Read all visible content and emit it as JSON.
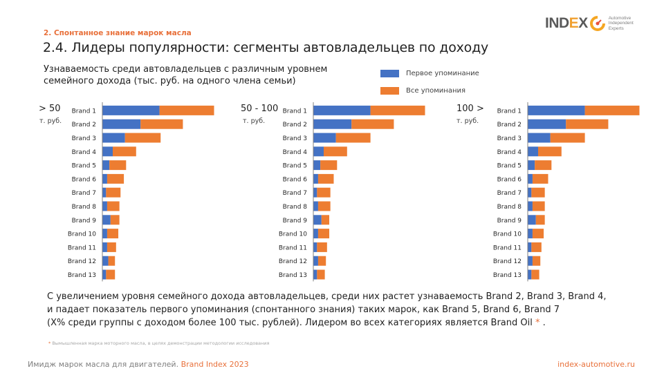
{
  "header": {
    "section": "2. Спонтанное знание марок масла",
    "title": "2.4. Лидеры популярности: сегменты автовладельцев по доходу",
    "subtitle": "Узнаваемость среди автовладельцев с различным уровнем семейного дохода (тыс. руб. на одного члена семьи)"
  },
  "logo": {
    "text_prefix": "IND",
    "text_accent": "E",
    "text_suffix": "X",
    "tagline": [
      "Automotive",
      "Independent",
      "Experts"
    ]
  },
  "legend": [
    {
      "label": "Первое упоминание",
      "color": "#4472c4"
    },
    {
      "label": "Все упоминания",
      "color": "#ed7d31"
    }
  ],
  "chart_data": [
    {
      "type": "bar",
      "orientation": "horizontal",
      "stacked": true,
      "group_label": "> 50",
      "group_sub": "т. руб.",
      "categories": [
        "Brand 1",
        "Brand 2",
        "Brand 3",
        "Brand 4",
        "Brand 5",
        "Brand 6",
        "Brand 7",
        "Brand 8",
        "Brand 9",
        "Brand 10",
        "Brand 11",
        "Brand 12",
        "Brand 13"
      ],
      "series": [
        {
          "name": "Первое упоминание",
          "color": "#4472c4",
          "values": [
            51,
            34,
            20,
            9,
            6,
            4,
            3,
            4,
            7,
            4,
            4,
            5,
            3
          ]
        },
        {
          "name": "Все упоминания",
          "color": "#ed7d31",
          "values": [
            49,
            38,
            32,
            21,
            15,
            15,
            13,
            11,
            8,
            10,
            8,
            6,
            8
          ]
        }
      ],
      "units": "relative (Brand 1 total = 100)",
      "xlim": [
        0,
        100
      ],
      "grid": false
    },
    {
      "type": "bar",
      "orientation": "horizontal",
      "stacked": true,
      "group_label": "50 - 100",
      "group_sub": "т. руб.",
      "categories": [
        "Brand 1",
        "Brand 2",
        "Brand 3",
        "Brand 4",
        "Brand 5",
        "Brand 6",
        "Brand 7",
        "Brand 8",
        "Brand 9",
        "Brand 10",
        "Brand 11",
        "Brand 12",
        "Brand 13"
      ],
      "series": [
        {
          "name": "Первое упоминание",
          "color": "#4472c4",
          "values": [
            51,
            34,
            20,
            9,
            6,
            4,
            3,
            4,
            7,
            4,
            3,
            4,
            3
          ]
        },
        {
          "name": "Все упоминания",
          "color": "#ed7d31",
          "values": [
            49,
            38,
            31,
            21,
            15,
            14,
            12,
            11,
            7,
            10,
            9,
            7,
            7
          ]
        }
      ],
      "units": "relative (Brand 1 total = 100)",
      "xlim": [
        0,
        100
      ],
      "grid": false
    },
    {
      "type": "bar",
      "orientation": "horizontal",
      "stacked": true,
      "group_label": "100 >",
      "group_sub": "т. руб.",
      "categories": [
        "Brand 1",
        "Brand 2",
        "Brand 3",
        "Brand 4",
        "Brand 5",
        "Brand 6",
        "Brand 7",
        "Brand 8",
        "Brand 9",
        "Brand 10",
        "Brand 11",
        "Brand 12",
        "Brand 13"
      ],
      "series": [
        {
          "name": "Первое упоминание",
          "color": "#4472c4",
          "values": [
            51,
            34,
            20,
            9,
            6,
            4,
            3,
            4,
            7,
            4,
            3,
            4,
            3
          ]
        },
        {
          "name": "Все упоминания",
          "color": "#ed7d31",
          "values": [
            49,
            38,
            31,
            21,
            15,
            14,
            12,
            11,
            8,
            10,
            9,
            7,
            7
          ]
        }
      ],
      "units": "relative (Brand 1 total = 100)",
      "xlim": [
        0,
        100
      ],
      "grid": false
    }
  ],
  "conclusion": {
    "line1": "С увеличением уровня семейного дохода автовладельцев, среди них растет узнаваемость Brand 2, Brand 3, Brand 4,",
    "line2": "и падает показатель первого упоминания (спонтанного знания) таких марок, как Brand 5, Brand 6, Brand 7",
    "line3": "(X% среди группы с доходом более 100 тыс. рублей). Лидером во всех категориях является Brand Oil",
    "star": "*",
    "end": "."
  },
  "footnote": {
    "star": "*",
    "text": "Вымышленная марка моторного масла, в целях демонстрации методологии исследования"
  },
  "footer": {
    "left_text": "Имидж марок масла для двигателей.",
    "left_brand": "Brand Index 2023",
    "right_text": "index-automotive.ru"
  }
}
